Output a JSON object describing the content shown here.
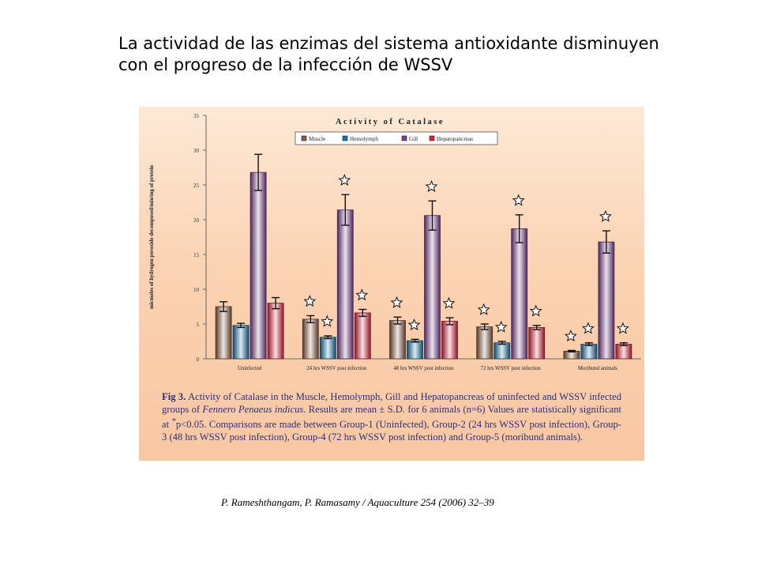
{
  "slide": {
    "title_line1": "La actividad de las enzimas del sistema antioxidante disminuyen",
    "title_line2": "con el progreso de la infección de WSSV"
  },
  "chart_data": {
    "type": "bar",
    "title": "Activity of Catalase",
    "ylabel": "micmoles of hydrogen peroxide decomposed/min/mg of protein",
    "xlabel": "",
    "ylim": [
      0,
      35
    ],
    "yticks": [
      0,
      5,
      10,
      15,
      20,
      25,
      30,
      35
    ],
    "grid": false,
    "legend_position": "top-center",
    "categories": [
      "Uninfected",
      "24 hrs WSSV post infection",
      "48 hrs WSSV post infection",
      "72 hrs WSSV post infection",
      "Moribund animals"
    ],
    "series": [
      {
        "name": "Muscle",
        "color": "#8b5a3c",
        "values": [
          7.5,
          5.7,
          5.5,
          4.6,
          1.1
        ],
        "errors": [
          0.7,
          0.5,
          0.5,
          0.4,
          0.1
        ],
        "significant": [
          false,
          true,
          true,
          true,
          true
        ]
      },
      {
        "name": "Hemolymph",
        "color": "#1576a8",
        "values": [
          4.8,
          3.1,
          2.6,
          2.3,
          2.1
        ],
        "errors": [
          0.3,
          0.2,
          0.2,
          0.2,
          0.2
        ],
        "significant": [
          false,
          true,
          true,
          true,
          true
        ]
      },
      {
        "name": "Gill",
        "color": "#7b3f8f",
        "values": [
          26.8,
          21.4,
          20.6,
          18.7,
          16.8
        ],
        "errors": [
          2.6,
          2.2,
          2.1,
          2.0,
          1.6
        ],
        "significant": [
          false,
          true,
          true,
          true,
          true
        ]
      },
      {
        "name": "Hepatopancreas",
        "color": "#e0203a",
        "values": [
          8.0,
          6.6,
          5.4,
          4.5,
          2.1
        ],
        "errors": [
          0.8,
          0.5,
          0.5,
          0.3,
          0.2
        ],
        "significant": [
          false,
          true,
          true,
          true,
          true
        ]
      }
    ]
  },
  "caption": {
    "label": "Fig 3.",
    "text_part1": " Activity of Catalase in the Muscle, Hemolymph, Gill and Hepatopancreas of uninfected and WSSV infected groups of ",
    "species": "Fennero Penaeus indicus",
    "text_part2": ".  Results are mean ± S.D. for 6 animals (n=6) Values are statistically significant at ",
    "sig_mark": "*",
    "text_part3": "p<0.05.  Comparisons are made between Group-1 (Uninfected), Group-2 (24 hrs WSSV post infection), Group-3 (48 hrs WSSV post infection), Group-4 (72 hrs WSSV post infection) and Group-5 (moribund animals)."
  },
  "citation": "P. Rameshthangam, P. Ramasamy / Aquaculture 254 (2006) 32–39"
}
